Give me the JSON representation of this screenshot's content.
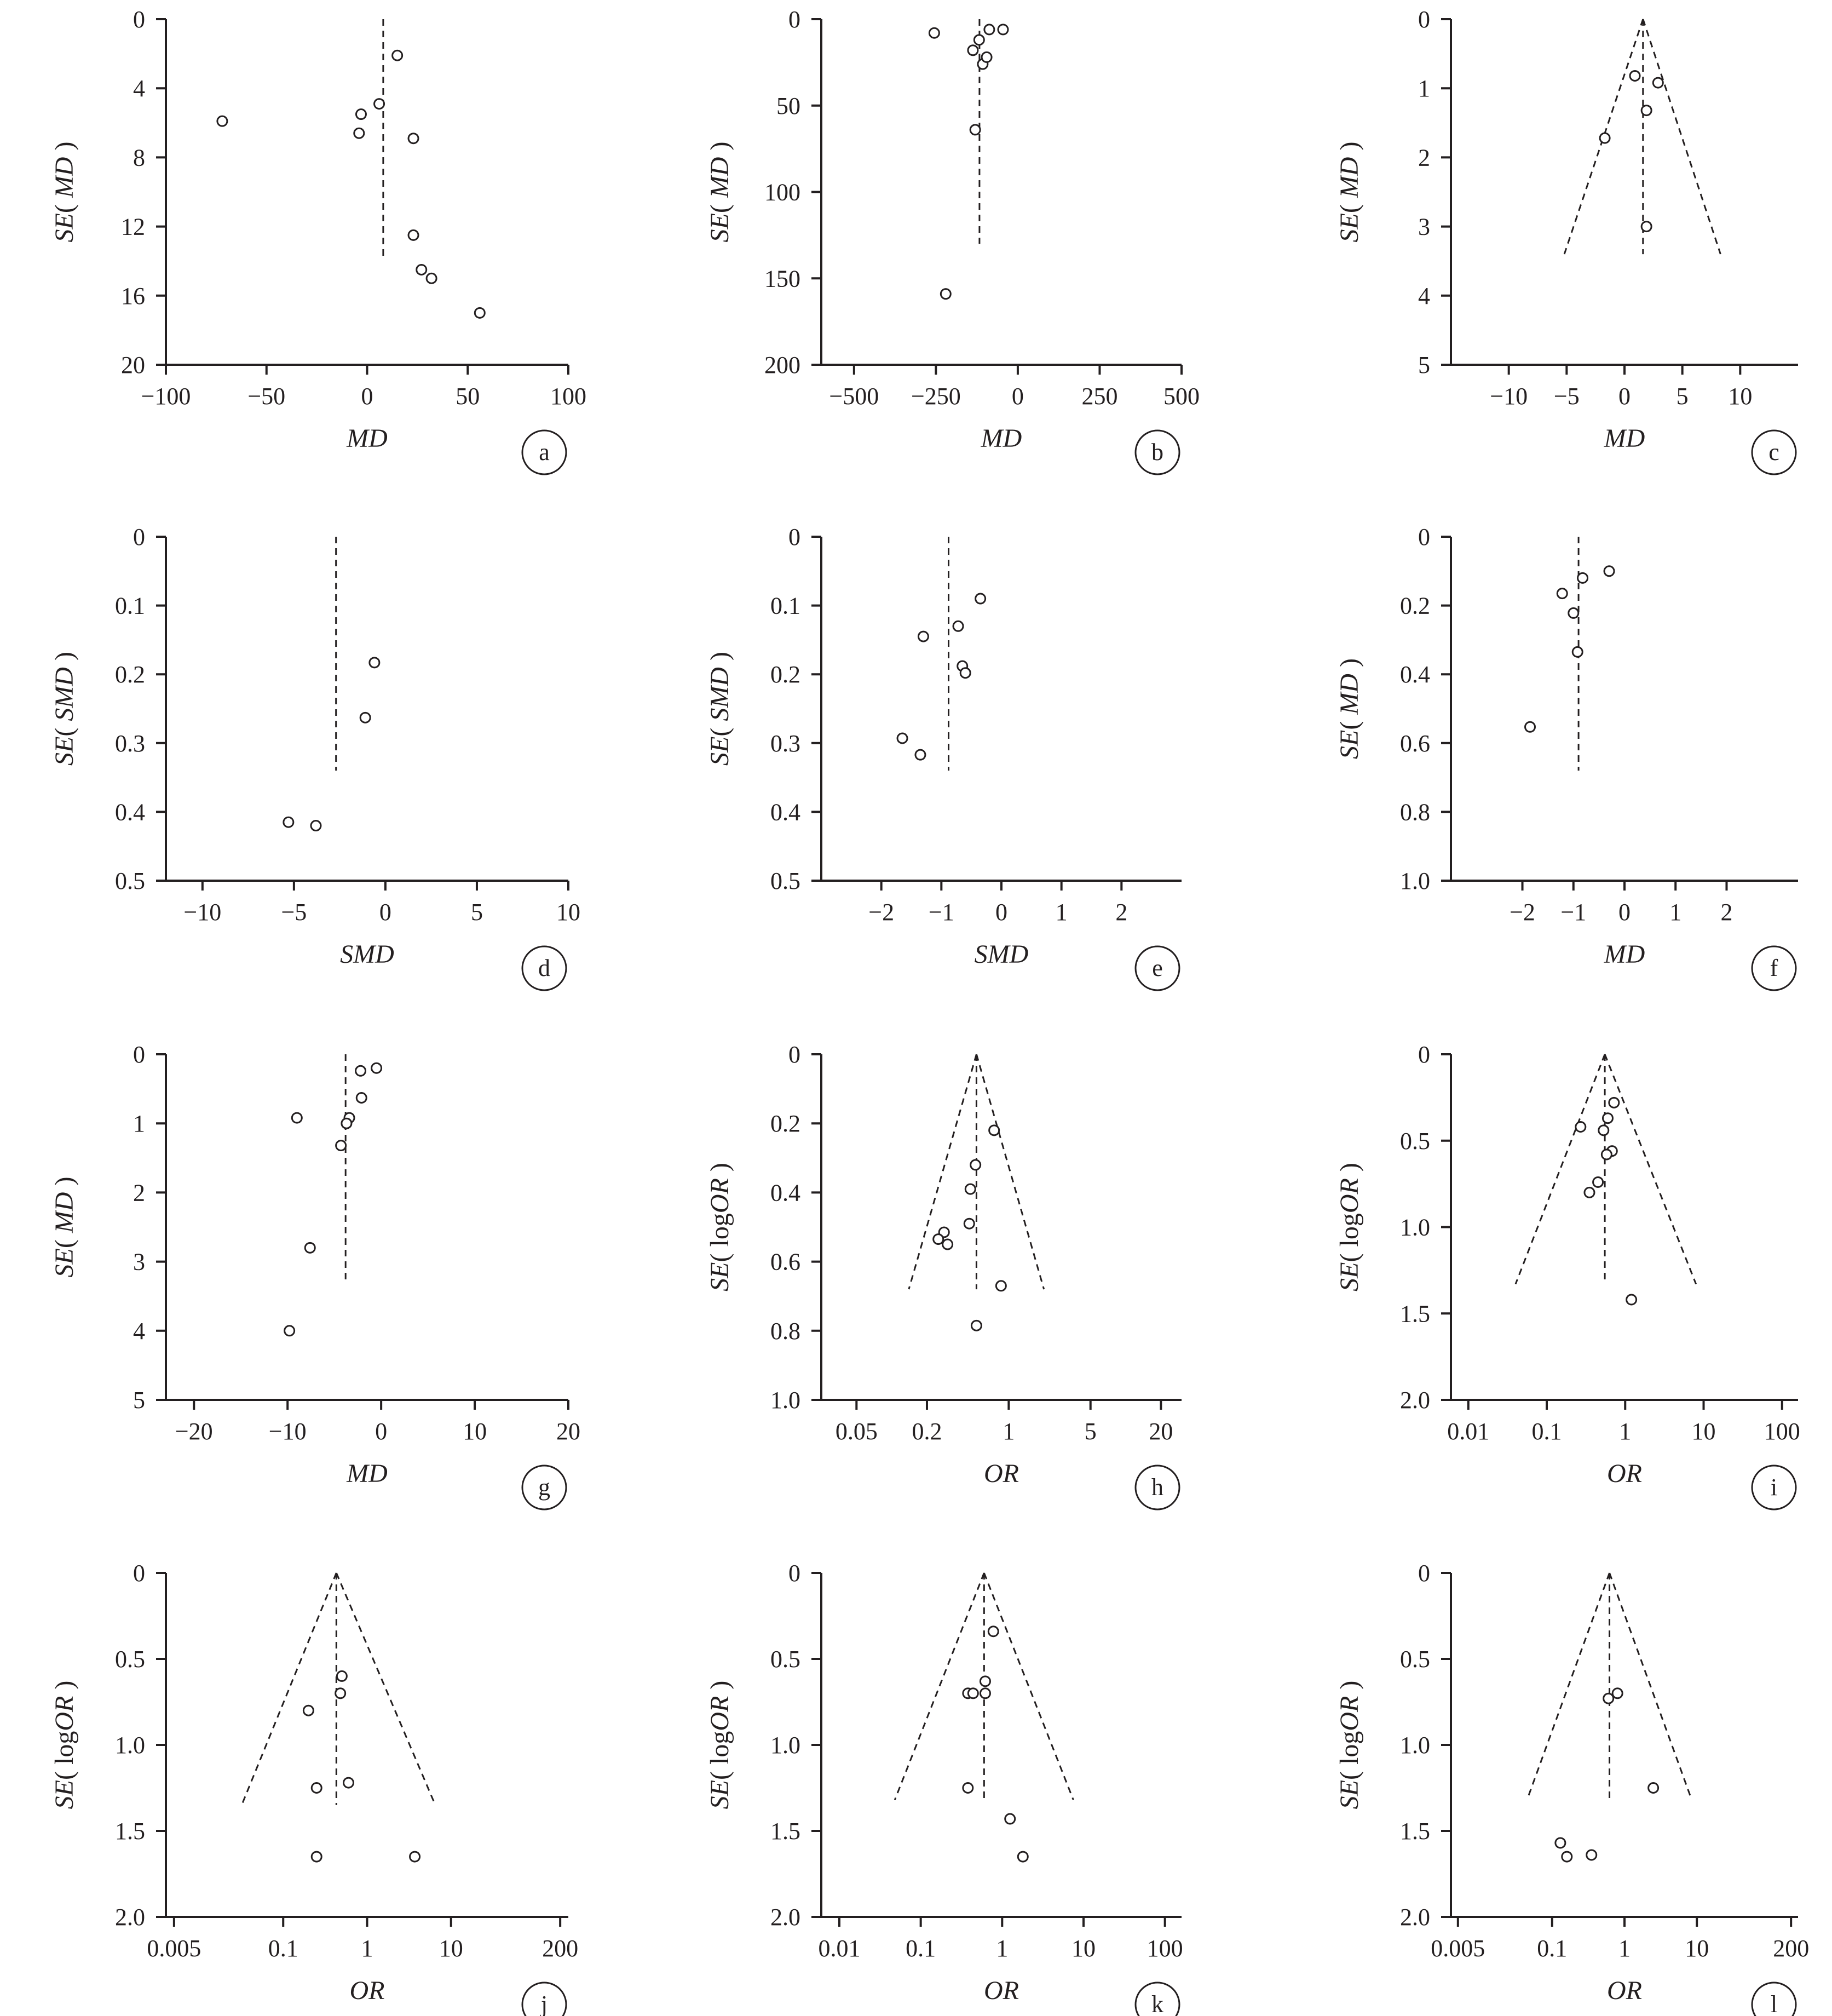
{
  "figure": {
    "panels": [
      "a",
      "b",
      "c",
      "d",
      "e",
      "f",
      "g",
      "h",
      "i",
      "j",
      "k",
      "l"
    ]
  },
  "chart_data": [
    {
      "panel": "a",
      "type": "scatter",
      "xlabel": "MD",
      "ylabel": "SE( MD )",
      "x_scale": "linear",
      "y_inverted": true,
      "xlim": [
        -100,
        100
      ],
      "ylim": [
        0,
        20
      ],
      "xticks": [
        -100,
        -50,
        0,
        50,
        100
      ],
      "xtick_labels": [
        "−100",
        "−50",
        "0",
        "50",
        "100"
      ],
      "yticks": [
        0,
        4,
        8,
        12,
        16,
        20
      ],
      "ytick_labels": [
        "0",
        "4",
        "8",
        "12",
        "16",
        "20"
      ],
      "points": [
        [
          -72,
          5.9
        ],
        [
          15,
          2.1
        ],
        [
          6,
          4.9
        ],
        [
          -3,
          5.5
        ],
        [
          -4,
          6.6
        ],
        [
          23,
          6.9
        ],
        [
          23,
          12.5
        ],
        [
          27,
          14.5
        ],
        [
          32,
          15
        ],
        [
          56,
          17
        ]
      ],
      "pooled_line": {
        "x": 8,
        "y_top": 0,
        "y_bottom": 13.9
      },
      "funnel": null
    },
    {
      "panel": "b",
      "type": "scatter",
      "xlabel": "MD",
      "ylabel": "SE( MD )",
      "x_scale": "linear",
      "y_inverted": true,
      "xlim": [
        -600,
        500
      ],
      "ylim": [
        0,
        200
      ],
      "xticks": [
        -500,
        -250,
        0,
        250,
        500
      ],
      "xtick_labels": [
        "−500",
        "−250",
        "0",
        "250",
        "500"
      ],
      "yticks": [
        0,
        50,
        100,
        150,
        200
      ],
      "ytick_labels": [
        "0",
        "50",
        "100",
        "150",
        "200"
      ],
      "points": [
        [
          -255,
          8
        ],
        [
          -45,
          6
        ],
        [
          -87,
          6
        ],
        [
          -118,
          12
        ],
        [
          -137,
          18
        ],
        [
          -107,
          26
        ],
        [
          -95,
          22
        ],
        [
          -130,
          64
        ],
        [
          -220,
          159
        ]
      ],
      "pooled_line": {
        "x": -117,
        "y_top": 0,
        "y_bottom": 130
      },
      "funnel": null
    },
    {
      "panel": "c",
      "type": "scatter",
      "xlabel": "MD",
      "ylabel": "SE( MD )",
      "x_scale": "linear",
      "y_inverted": true,
      "xlim": [
        -15,
        15
      ],
      "ylim": [
        0,
        5
      ],
      "xticks": [
        -10,
        -5,
        0,
        5,
        10
      ],
      "xtick_labels": [
        "−10",
        "−5",
        "0",
        "5",
        "10"
      ],
      "yticks": [
        0,
        1,
        2,
        3,
        4,
        5
      ],
      "ytick_labels": [
        "0",
        "1",
        "2",
        "3",
        "4",
        "5"
      ],
      "points": [
        [
          0.9,
          0.82
        ],
        [
          2.9,
          0.92
        ],
        [
          1.9,
          1.32
        ],
        [
          -1.7,
          1.72
        ],
        [
          1.9,
          3.0
        ]
      ],
      "pooled_line": {
        "x": 1.6,
        "y_top": 0,
        "y_bottom": 3.4
      },
      "funnel": {
        "apex_x": 1.6,
        "left_bottom_x": -5.2,
        "right_bottom_x": 8.3,
        "y_bottom": 3.4
      }
    },
    {
      "panel": "d",
      "type": "scatter",
      "xlabel": "SMD",
      "ylabel": "SE( SMD )",
      "x_scale": "linear",
      "y_inverted": true,
      "xlim": [
        -12,
        10
      ],
      "ylim": [
        0,
        0.5
      ],
      "xticks": [
        -10,
        -5,
        0,
        5,
        10
      ],
      "xtick_labels": [
        "−10",
        "−5",
        "0",
        "5",
        "10"
      ],
      "yticks": [
        0,
        0.1,
        0.2,
        0.3,
        0.4,
        0.5
      ],
      "ytick_labels": [
        "0",
        "0.1",
        "0.2",
        "0.3",
        "0.4",
        "0.5"
      ],
      "points": [
        [
          -0.6,
          0.183
        ],
        [
          -1.1,
          0.263
        ],
        [
          -5.3,
          0.415
        ],
        [
          -3.8,
          0.42
        ]
      ],
      "pooled_line": {
        "x": -2.7,
        "y_top": 0,
        "y_bottom": 0.34
      },
      "funnel": null
    },
    {
      "panel": "e",
      "type": "scatter",
      "xlabel": "SMD",
      "ylabel": "SE( SMD )",
      "x_scale": "linear",
      "y_inverted": true,
      "xlim": [
        -3,
        3
      ],
      "ylim": [
        0,
        0.5
      ],
      "xticks": [
        -2,
        -1,
        0,
        1,
        2
      ],
      "xtick_labels": [
        "−2",
        "−1",
        "0",
        "1",
        "2"
      ],
      "yticks": [
        0,
        0.1,
        0.2,
        0.3,
        0.4,
        0.5
      ],
      "ytick_labels": [
        "0",
        "0.1",
        "0.2",
        "0.3",
        "0.4",
        "0.5"
      ],
      "points": [
        [
          -0.35,
          0.09
        ],
        [
          -0.72,
          0.13
        ],
        [
          -1.3,
          0.145
        ],
        [
          -0.65,
          0.188
        ],
        [
          -0.6,
          0.198
        ],
        [
          -1.65,
          0.293
        ],
        [
          -1.35,
          0.317
        ]
      ],
      "pooled_line": {
        "x": -0.88,
        "y_top": 0,
        "y_bottom": 0.34
      },
      "funnel": null
    },
    {
      "panel": "f",
      "type": "scatter",
      "xlabel": "MD",
      "ylabel": "SE( MD )",
      "x_scale": "linear",
      "y_inverted": true,
      "xlim": [
        -3.4,
        3.4
      ],
      "ylim": [
        0,
        1.0
      ],
      "xticks": [
        -2,
        -1,
        0,
        1,
        2
      ],
      "xtick_labels": [
        "−2",
        "−1",
        "0",
        "1",
        "2"
      ],
      "yticks": [
        0,
        0.2,
        0.4,
        0.6,
        0.8,
        1.0
      ],
      "ytick_labels": [
        "0",
        "0.2",
        "0.4",
        "0.6",
        "0.8",
        "1.0"
      ],
      "points": [
        [
          -0.3,
          0.1
        ],
        [
          -0.82,
          0.12
        ],
        [
          -1.22,
          0.165
        ],
        [
          -1.0,
          0.222
        ],
        [
          -0.92,
          0.335
        ],
        [
          -1.85,
          0.553
        ]
      ],
      "pooled_line": {
        "x": -0.9,
        "y_top": 0,
        "y_bottom": 0.68
      },
      "funnel": null
    },
    {
      "panel": "g",
      "type": "scatter",
      "xlabel": "MD",
      "ylabel": "SE( MD )",
      "x_scale": "linear",
      "y_inverted": true,
      "xlim": [
        -23,
        20
      ],
      "ylim": [
        0,
        5
      ],
      "xticks": [
        -20,
        -10,
        0,
        10,
        20
      ],
      "xtick_labels": [
        "−20",
        "−10",
        "0",
        "10",
        "20"
      ],
      "yticks": [
        0,
        1,
        2,
        3,
        4,
        5
      ],
      "ytick_labels": [
        "0",
        "1",
        "2",
        "3",
        "4",
        "5"
      ],
      "points": [
        [
          -0.5,
          0.2
        ],
        [
          -2.2,
          0.24
        ],
        [
          -2.1,
          0.63
        ],
        [
          -9.0,
          0.92
        ],
        [
          -3.4,
          0.92
        ],
        [
          -3.7,
          1.0
        ],
        [
          -4.3,
          1.32
        ],
        [
          -7.6,
          2.8
        ],
        [
          -9.8,
          4.0
        ]
      ],
      "pooled_line": {
        "x": -3.8,
        "y_top": 0,
        "y_bottom": 3.3
      },
      "funnel": null
    },
    {
      "panel": "h",
      "type": "scatter",
      "xlabel": "OR",
      "ylabel": "SE( logOR )",
      "x_scale": "log",
      "y_inverted": true,
      "xlim": [
        0.025,
        30
      ],
      "ylim": [
        0,
        1.0
      ],
      "xticks": [
        0.05,
        0.2,
        1,
        5,
        20
      ],
      "xtick_labels": [
        "0.05",
        "0.2",
        "1",
        "5",
        "20"
      ],
      "yticks": [
        0,
        0.2,
        0.4,
        0.6,
        0.8,
        1.0
      ],
      "ytick_labels": [
        "0",
        "0.2",
        "0.4",
        "0.6",
        "0.8",
        "1.0"
      ],
      "points": [
        [
          0.75,
          0.22
        ],
        [
          0.52,
          0.32
        ],
        [
          0.47,
          0.39
        ],
        [
          0.46,
          0.49
        ],
        [
          0.28,
          0.515
        ],
        [
          0.25,
          0.535
        ],
        [
          0.3,
          0.55
        ],
        [
          0.86,
          0.67
        ],
        [
          0.53,
          0.785
        ]
      ],
      "pooled_line": {
        "x": 0.53,
        "y_top": 0,
        "y_bottom": 0.68
      },
      "funnel": {
        "apex_x": 0.53,
        "left_bottom_x": 0.14,
        "right_bottom_x": 2.0,
        "y_bottom": 0.68
      }
    },
    {
      "panel": "i",
      "type": "scatter",
      "xlabel": "OR",
      "ylabel": "SE( logOR )",
      "x_scale": "log",
      "y_inverted": true,
      "xlim": [
        0.006,
        160
      ],
      "ylim": [
        0,
        2.0
      ],
      "xticks": [
        0.01,
        0.1,
        1,
        10,
        100
      ],
      "xtick_labels": [
        "0.01",
        "0.1",
        "1",
        "10",
        "100"
      ],
      "yticks": [
        0,
        0.5,
        1.0,
        1.5,
        2.0
      ],
      "ytick_labels": [
        "0",
        "0.5",
        "1.0",
        "1.5",
        "2.0"
      ],
      "points": [
        [
          0.72,
          0.28
        ],
        [
          0.6,
          0.37
        ],
        [
          0.27,
          0.42
        ],
        [
          0.53,
          0.44
        ],
        [
          0.68,
          0.56
        ],
        [
          0.58,
          0.58
        ],
        [
          0.45,
          0.74
        ],
        [
          0.35,
          0.8
        ],
        [
          1.2,
          1.42
        ]
      ],
      "pooled_line": {
        "x": 0.55,
        "y_top": 0,
        "y_bottom": 1.33
      },
      "funnel": {
        "apex_x": 0.55,
        "left_bottom_x": 0.04,
        "right_bottom_x": 8.0,
        "y_bottom": 1.33
      }
    },
    {
      "panel": "j",
      "type": "scatter",
      "xlabel": "OR",
      "ylabel": "SE( logOR )",
      "x_scale": "log",
      "y_inverted": true,
      "xlim": [
        0.004,
        250
      ],
      "ylim": [
        0,
        2.0
      ],
      "xticks": [
        0.005,
        0.1,
        1,
        10,
        200
      ],
      "xtick_labels": [
        "0.005",
        "0.1",
        "1",
        "10",
        "200"
      ],
      "yticks": [
        0,
        0.5,
        1.0,
        1.5,
        2.0
      ],
      "ytick_labels": [
        "0",
        "0.5",
        "1.0",
        "1.5",
        "2.0"
      ],
      "points": [
        [
          0.5,
          0.6
        ],
        [
          0.48,
          0.7
        ],
        [
          0.2,
          0.8
        ],
        [
          0.6,
          1.22
        ],
        [
          0.25,
          1.25
        ],
        [
          3.7,
          1.65
        ],
        [
          0.25,
          1.65
        ]
      ],
      "pooled_line": {
        "x": 0.43,
        "y_top": 0,
        "y_bottom": 1.35
      },
      "funnel": {
        "apex_x": 0.43,
        "left_bottom_x": 0.032,
        "right_bottom_x": 6.5,
        "y_bottom": 1.35
      }
    },
    {
      "panel": "k",
      "type": "scatter",
      "xlabel": "OR",
      "ylabel": "SE( logOR )",
      "x_scale": "log",
      "y_inverted": true,
      "xlim": [
        0.006,
        160
      ],
      "ylim": [
        0,
        2.0
      ],
      "xticks": [
        0.01,
        0.1,
        1,
        10,
        100
      ],
      "xtick_labels": [
        "0.01",
        "0.1",
        "1",
        "10",
        "100"
      ],
      "yticks": [
        0,
        0.5,
        1.0,
        1.5,
        2.0
      ],
      "ytick_labels": [
        "0",
        "0.5",
        "1.0",
        "1.5",
        "2.0"
      ],
      "points": [
        [
          0.78,
          0.34
        ],
        [
          0.62,
          0.63
        ],
        [
          0.38,
          0.7
        ],
        [
          0.44,
          0.7
        ],
        [
          0.62,
          0.7
        ],
        [
          0.38,
          1.25
        ],
        [
          1.25,
          1.43
        ],
        [
          1.8,
          1.65
        ]
      ],
      "pooled_line": {
        "x": 0.6,
        "y_top": 0,
        "y_bottom": 1.32
      },
      "funnel": {
        "apex_x": 0.6,
        "left_bottom_x": 0.048,
        "right_bottom_x": 7.5,
        "y_bottom": 1.32
      }
    },
    {
      "panel": "l",
      "type": "scatter",
      "xlabel": "OR",
      "ylabel": "SE( logOR )",
      "x_scale": "log",
      "y_inverted": true,
      "xlim": [
        0.004,
        250
      ],
      "ylim": [
        0,
        2.0
      ],
      "xticks": [
        0.005,
        0.1,
        1,
        10,
        200
      ],
      "xtick_labels": [
        "0.005",
        "0.1",
        "1",
        "10",
        "200"
      ],
      "yticks": [
        0,
        0.5,
        1.0,
        1.5,
        2.0
      ],
      "ytick_labels": [
        "0",
        "0.5",
        "1.0",
        "1.5",
        "2.0"
      ],
      "points": [
        [
          0.8,
          0.7
        ],
        [
          0.6,
          0.73
        ],
        [
          2.5,
          1.25
        ],
        [
          0.13,
          1.57
        ],
        [
          0.16,
          1.65
        ],
        [
          0.35,
          1.64
        ]
      ],
      "pooled_line": {
        "x": 0.62,
        "y_top": 0,
        "y_bottom": 1.32
      },
      "funnel": {
        "apex_x": 0.62,
        "left_bottom_x": 0.045,
        "right_bottom_x": 8.5,
        "y_bottom": 1.32
      }
    }
  ]
}
